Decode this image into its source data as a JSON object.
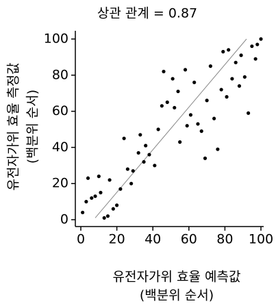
{
  "chart_data": {
    "type": "scatter",
    "title": "상관 관계 = 0.87",
    "x_label": [
      "유전자가위 효율 예측값",
      "(백분위 순서)"
    ],
    "y_label": [
      "유전자가위 효율 측정값",
      "(백분위 순서)"
    ],
    "color": "#000000",
    "x": [
      1,
      3,
      4,
      6,
      8,
      10,
      11,
      13,
      15,
      16,
      18,
      20,
      22,
      24,
      26,
      28,
      29,
      32,
      33,
      35,
      36,
      38,
      41,
      43,
      45,
      46,
      48,
      51,
      52,
      54,
      55,
      58,
      59,
      61,
      63,
      65,
      67,
      69,
      70,
      72,
      74,
      76,
      78,
      79,
      81,
      82,
      84,
      86,
      88,
      89,
      91,
      93,
      95,
      97,
      98,
      100
    ],
    "values": [
      4,
      10,
      23,
      12,
      13,
      24,
      15,
      1,
      2,
      22,
      6,
      8,
      17,
      45,
      28,
      20,
      27,
      37,
      47,
      32,
      41,
      36,
      30,
      50,
      63,
      82,
      65,
      78,
      62,
      71,
      43,
      83,
      52,
      58,
      76,
      53,
      49,
      34,
      66,
      85,
      56,
      39,
      72,
      93,
      68,
      94,
      78,
      87,
      74,
      91,
      79,
      59,
      96,
      89,
      97,
      100
    ],
    "fit_line": {
      "x": [
        8,
        92
      ],
      "y": [
        1,
        100
      ],
      "color": "#888888"
    },
    "xlim": [
      0,
      100
    ],
    "ylim": [
      0,
      100
    ],
    "xticks": [
      0,
      20,
      40,
      60,
      80,
      100
    ],
    "yticks": [
      0,
      20,
      40,
      60,
      80,
      100
    ]
  }
}
